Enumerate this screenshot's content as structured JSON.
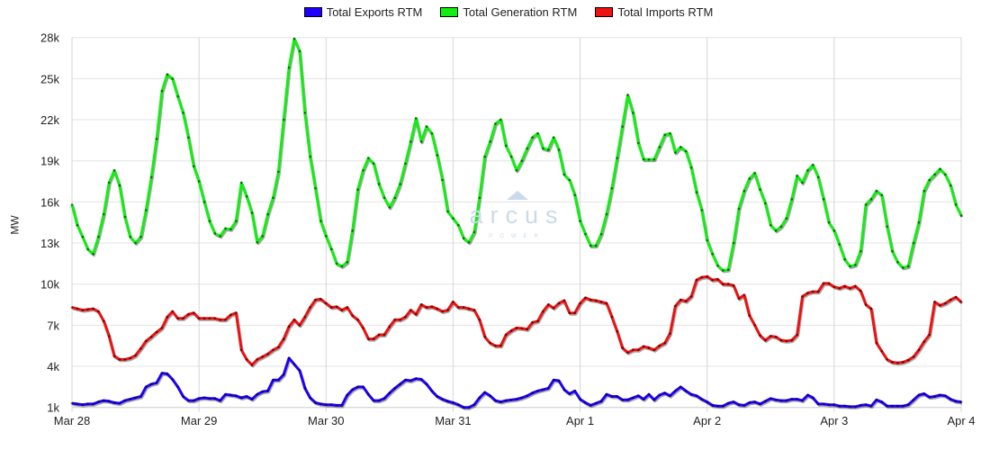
{
  "chart_data": {
    "type": "line",
    "title": "",
    "xlabel": "",
    "ylabel": "MW",
    "ylim": [
      1,
      28
    ],
    "y_unit": "k",
    "yticks": [
      "1k",
      "4k",
      "7k",
      "10k",
      "13k",
      "16k",
      "19k",
      "22k",
      "25k",
      "28k"
    ],
    "ytick_values": [
      1,
      4,
      7,
      10,
      13,
      16,
      19,
      22,
      25,
      28
    ],
    "xticks": [
      "Mar 28",
      "Mar 29",
      "Mar 30",
      "Mar 31",
      "Apr 1",
      "Apr 2",
      "Apr 3",
      "Apr 4"
    ],
    "x_step_hours": 1,
    "grid": true,
    "legend_position": "top-center",
    "series": [
      {
        "name": "Total Exports RTM",
        "color": "#1f00ff",
        "values": [
          1.3,
          1.25,
          1.2,
          1.25,
          1.25,
          1.4,
          1.5,
          1.45,
          1.35,
          1.3,
          1.5,
          1.6,
          1.7,
          1.8,
          2.5,
          2.7,
          2.8,
          3.5,
          3.45,
          3.05,
          2.5,
          1.8,
          1.5,
          1.5,
          1.65,
          1.7,
          1.65,
          1.65,
          1.5,
          1.95,
          1.9,
          1.85,
          1.7,
          1.8,
          1.6,
          1.95,
          2.15,
          2.2,
          3.0,
          3.0,
          3.4,
          4.6,
          4.15,
          3.7,
          2.4,
          1.7,
          1.35,
          1.25,
          1.2,
          1.2,
          1.15,
          1.15,
          1.9,
          2.3,
          2.5,
          2.5,
          1.95,
          1.5,
          1.5,
          1.65,
          2.05,
          2.4,
          2.7,
          3.0,
          2.95,
          3.1,
          3.05,
          2.7,
          2.2,
          1.8,
          1.6,
          1.45,
          1.35,
          1.2,
          1.0,
          1.0,
          1.2,
          1.7,
          2.1,
          1.85,
          1.5,
          1.4,
          1.5,
          1.55,
          1.6,
          1.7,
          1.85,
          2.05,
          2.2,
          2.3,
          2.4,
          3.0,
          2.95,
          2.3,
          2.0,
          2.2,
          1.6,
          1.35,
          1.15,
          1.3,
          1.45,
          1.95,
          1.8,
          1.8,
          1.55,
          1.55,
          1.7,
          1.85,
          1.6,
          1.95,
          1.55,
          1.9,
          2.05,
          1.85,
          2.2,
          2.5,
          2.2,
          1.95,
          1.85,
          1.6,
          1.4,
          1.15,
          1.1,
          1.1,
          1.3,
          1.4,
          1.2,
          1.15,
          1.35,
          1.4,
          1.25,
          1.45,
          1.65,
          1.55,
          1.5,
          1.5,
          1.6,
          1.6,
          1.5,
          1.9,
          1.7,
          1.25,
          1.25,
          1.2,
          1.2,
          1.1,
          1.1,
          1.05,
          1.05,
          1.15,
          1.2,
          1.1,
          1.55,
          1.4,
          1.1,
          1.1,
          1.1,
          1.1,
          1.2,
          1.55,
          1.9,
          2.0,
          1.75,
          1.8,
          1.9,
          1.85,
          1.6,
          1.45,
          1.4
        ]
      },
      {
        "name": "Total Generation RTM",
        "color": "#11ee11",
        "values": [
          15.8,
          14.3,
          13.45,
          12.55,
          12.2,
          13.45,
          15.1,
          17.4,
          18.3,
          17.2,
          14.9,
          13.45,
          13.0,
          13.45,
          15.4,
          17.8,
          20.6,
          24.1,
          25.3,
          25.0,
          23.7,
          22.5,
          20.7,
          18.6,
          17.5,
          16.0,
          14.6,
          13.7,
          13.5,
          14.05,
          14.0,
          14.6,
          17.4,
          16.4,
          15.2,
          13.05,
          13.5,
          15.1,
          16.3,
          18.2,
          22.0,
          25.8,
          27.9,
          27.0,
          22.5,
          19.3,
          17.0,
          14.6,
          13.5,
          12.55,
          11.5,
          11.3,
          11.6,
          13.9,
          16.9,
          18.3,
          19.2,
          18.8,
          17.3,
          16.3,
          15.6,
          16.3,
          17.3,
          18.8,
          20.4,
          22.1,
          20.4,
          21.5,
          21.0,
          19.4,
          17.6,
          15.3,
          14.8,
          14.3,
          13.35,
          13.05,
          13.8,
          16.3,
          19.3,
          20.4,
          21.7,
          22.0,
          20.1,
          19.3,
          18.3,
          19.0,
          19.9,
          20.7,
          21.0,
          19.9,
          19.8,
          20.7,
          19.8,
          18.0,
          17.6,
          16.5,
          14.6,
          13.65,
          12.8,
          12.8,
          13.65,
          15.1,
          17.0,
          19.2,
          21.5,
          23.8,
          22.5,
          20.3,
          19.1,
          19.1,
          19.1,
          20.0,
          20.9,
          21.0,
          19.6,
          20.0,
          19.7,
          18.5,
          16.7,
          15.4,
          13.2,
          12.2,
          11.35,
          11.0,
          11.05,
          13.0,
          15.5,
          16.8,
          17.7,
          18.1,
          16.9,
          15.9,
          14.3,
          13.9,
          14.2,
          14.8,
          16.2,
          17.9,
          17.4,
          18.3,
          18.7,
          17.8,
          16.2,
          14.5,
          13.9,
          12.9,
          11.8,
          11.3,
          11.4,
          12.4,
          15.8,
          16.2,
          16.8,
          16.5,
          14.2,
          12.4,
          11.6,
          11.2,
          11.3,
          13.0,
          14.5,
          16.8,
          17.6,
          18.0,
          18.4,
          18.0,
          17.2,
          15.8,
          15.0
        ]
      },
      {
        "name": "Total Imports RTM",
        "color": "#ee1111",
        "values": [
          8.3,
          8.2,
          8.1,
          8.15,
          8.2,
          8.0,
          7.3,
          6.2,
          4.75,
          4.5,
          4.5,
          4.6,
          4.8,
          5.3,
          5.85,
          6.15,
          6.5,
          6.8,
          7.6,
          8.0,
          7.5,
          7.5,
          7.8,
          7.9,
          7.5,
          7.5,
          7.5,
          7.5,
          7.4,
          7.4,
          7.75,
          7.9,
          5.2,
          4.5,
          4.1,
          4.5,
          4.7,
          4.9,
          5.2,
          5.4,
          6.0,
          6.9,
          7.4,
          7.0,
          7.6,
          8.3,
          8.85,
          8.9,
          8.6,
          8.3,
          8.35,
          8.1,
          8.3,
          7.7,
          7.4,
          6.8,
          6.0,
          6.0,
          6.3,
          6.3,
          6.9,
          7.4,
          7.4,
          7.6,
          8.1,
          7.8,
          8.5,
          8.3,
          8.35,
          8.2,
          8.0,
          8.1,
          8.7,
          8.3,
          8.3,
          8.2,
          8.1,
          7.4,
          6.15,
          5.7,
          5.5,
          5.5,
          6.3,
          6.6,
          6.8,
          6.77,
          6.7,
          7.2,
          7.3,
          8.0,
          8.5,
          8.25,
          8.6,
          8.8,
          7.9,
          7.9,
          8.6,
          9.0,
          8.85,
          8.8,
          8.7,
          8.6,
          7.6,
          6.55,
          5.35,
          5.0,
          5.2,
          5.2,
          5.45,
          5.35,
          5.2,
          5.5,
          5.7,
          6.4,
          8.4,
          8.85,
          8.75,
          9.1,
          10.3,
          10.5,
          10.55,
          10.3,
          10.35,
          10.0,
          10.0,
          9.9,
          8.95,
          9.2,
          7.7,
          7.0,
          6.25,
          5.9,
          6.2,
          6.15,
          5.9,
          5.85,
          5.9,
          6.3,
          9.1,
          9.35,
          9.45,
          9.45,
          10.05,
          10.05,
          9.8,
          9.7,
          9.85,
          9.7,
          9.85,
          9.5,
          8.5,
          8.2,
          5.7,
          5.1,
          4.5,
          4.3,
          4.25,
          4.3,
          4.45,
          4.7,
          5.2,
          5.8,
          6.3,
          8.7,
          8.45,
          8.6,
          8.85,
          9.05,
          8.7
        ]
      }
    ]
  },
  "watermark": {
    "name": "arcus",
    "sub": "POWER"
  }
}
